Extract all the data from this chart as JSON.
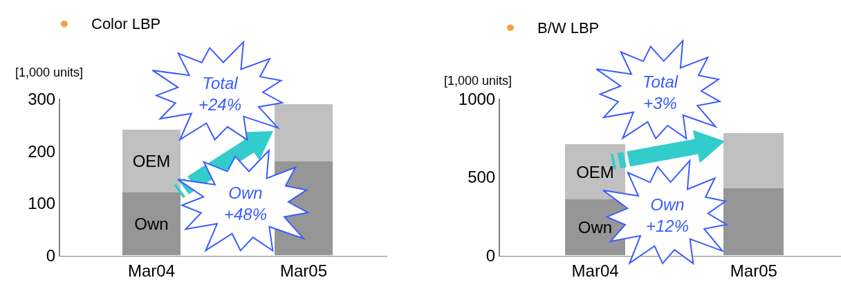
{
  "chart_data": [
    {
      "type": "bar",
      "title": "Color LBP",
      "ylabel": "[1,000 units]",
      "categories": [
        "Mar04",
        "Mar05"
      ],
      "stacked": true,
      "series": [
        {
          "name": "Own",
          "color": "#969696",
          "values": [
            120,
            180
          ]
        },
        {
          "name": "OEM",
          "color": "#c0c0c0",
          "values": [
            120,
            110
          ]
        }
      ],
      "ylim": [
        0,
        300
      ],
      "yticks": [
        0,
        100,
        200,
        300
      ],
      "annotations": [
        "Total\n+24%",
        "Own\n+48%"
      ]
    },
    {
      "type": "bar",
      "title": "B/W LBP",
      "ylabel": "[1,000 units]",
      "categories": [
        "Mar04",
        "Mar05"
      ],
      "stacked": true,
      "series": [
        {
          "name": "Own",
          "color": "#969696",
          "values": [
            360,
            430
          ]
        },
        {
          "name": "OEM",
          "color": "#c0c0c0",
          "values": [
            350,
            350
          ]
        }
      ],
      "ylim": [
        0,
        1000
      ],
      "yticks": [
        0,
        500,
        1000
      ],
      "annotations": [
        "Total\n+3%",
        "Own\n+12%"
      ]
    }
  ]
}
